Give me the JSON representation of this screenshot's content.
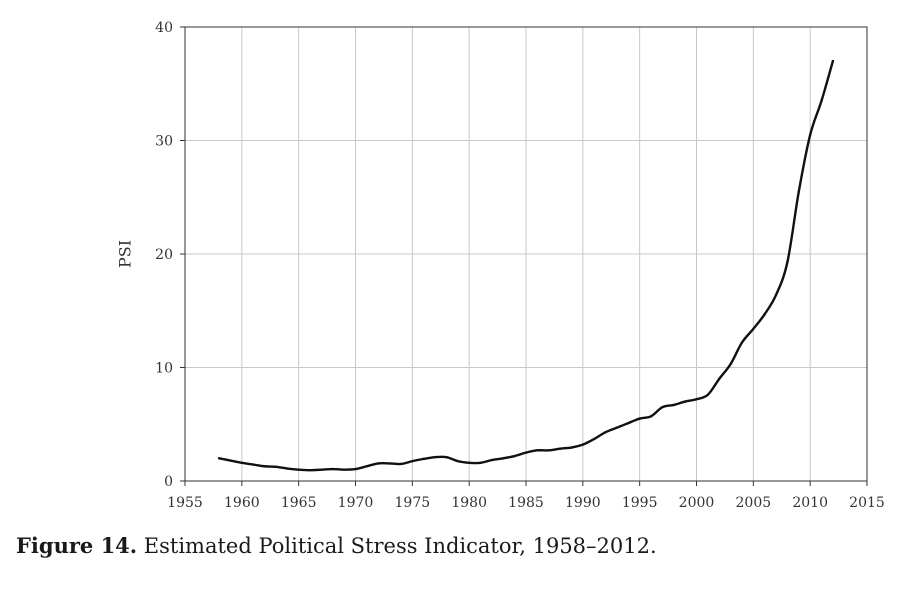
{
  "chart_data": {
    "type": "line",
    "title": "",
    "xlabel": "",
    "ylabel": "PSI",
    "xlim": [
      1955,
      2015
    ],
    "ylim": [
      0,
      40
    ],
    "xticks": [
      1955,
      1960,
      1965,
      1970,
      1975,
      1980,
      1985,
      1990,
      1995,
      2000,
      2005,
      2010,
      2015
    ],
    "yticks": [
      0,
      10,
      20,
      30,
      40
    ],
    "grid": true,
    "legend": "none",
    "colors": {
      "line": "#111111",
      "grid": "#c8c8c8",
      "axis": "#333333"
    },
    "series": [
      {
        "x": [
          1958,
          1959,
          1960,
          1961,
          1962,
          1963,
          1964,
          1965,
          1966,
          1967,
          1968,
          1969,
          1970,
          1971,
          1972,
          1973,
          1974,
          1975,
          1976,
          1977,
          1978,
          1979,
          1980,
          1981,
          1982,
          1983,
          1984,
          1985,
          1986,
          1987,
          1988,
          1989,
          1990,
          1991,
          1992,
          1993,
          1994,
          1995,
          1996,
          1997,
          1998,
          1999,
          2000,
          2001,
          2002,
          2003,
          2004,
          2005,
          2006,
          2007,
          2008,
          2009,
          2010,
          2011,
          2012
        ],
        "values": [
          2.0,
          1.8,
          1.6,
          1.45,
          1.3,
          1.25,
          1.1,
          1.0,
          0.95,
          1.0,
          1.05,
          1.0,
          1.05,
          1.3,
          1.55,
          1.55,
          1.5,
          1.75,
          1.95,
          2.1,
          2.1,
          1.75,
          1.6,
          1.6,
          1.85,
          2.0,
          2.2,
          2.5,
          2.7,
          2.7,
          2.85,
          2.95,
          3.2,
          3.7,
          4.3,
          4.7,
          5.1,
          5.5,
          5.7,
          6.5,
          6.7,
          7.0,
          7.2,
          7.6,
          9.0,
          10.3,
          12.2,
          13.4,
          14.7,
          16.4,
          19.3,
          25.5,
          30.5,
          33.5,
          37.0
        ]
      }
    ]
  },
  "caption": {
    "label": "Figure 14.",
    "text": " Estimated Political Stress Indicator, 1958–2012."
  }
}
